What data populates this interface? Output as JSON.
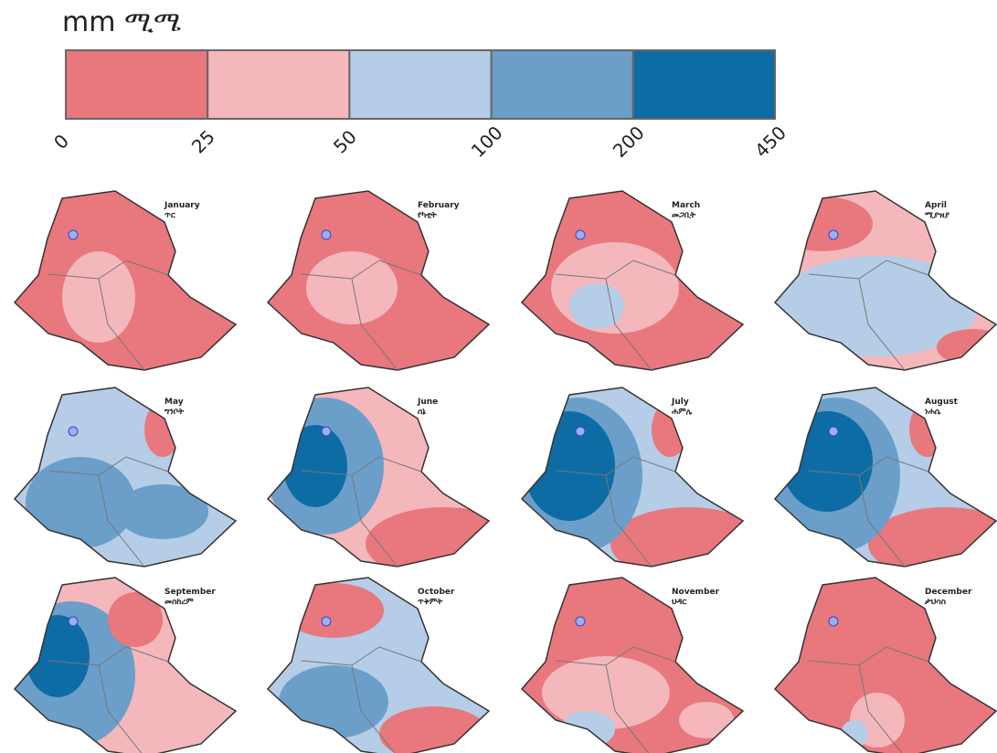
{
  "legend": {
    "title": "mm ሚሜ",
    "ticks": [
      "0",
      "25",
      "50",
      "100",
      "200",
      "450"
    ],
    "colors": [
      "#e8787e",
      "#f4b8bc",
      "#b5cde6",
      "#6b9fca",
      "#0e6ca5"
    ]
  },
  "maps": [
    {
      "month": "January",
      "month_local": "ጥር"
    },
    {
      "month": "February",
      "month_local": "የካቲት"
    },
    {
      "month": "March",
      "month_local": "መጋቢት"
    },
    {
      "month": "April",
      "month_local": "ሚያዝያ"
    },
    {
      "month": "May",
      "month_local": "ግንቦት"
    },
    {
      "month": "June",
      "month_local": "ሰኔ"
    },
    {
      "month": "July",
      "month_local": "ሐምሌ"
    },
    {
      "month": "August",
      "month_local": "ነሐሴ"
    },
    {
      "month": "September",
      "month_local": "መስከረም"
    },
    {
      "month": "October",
      "month_local": "ጥቅምት"
    },
    {
      "month": "November",
      "month_local": "ህዳር"
    },
    {
      "month": "December",
      "month_local": "ታህሳስ"
    }
  ]
}
